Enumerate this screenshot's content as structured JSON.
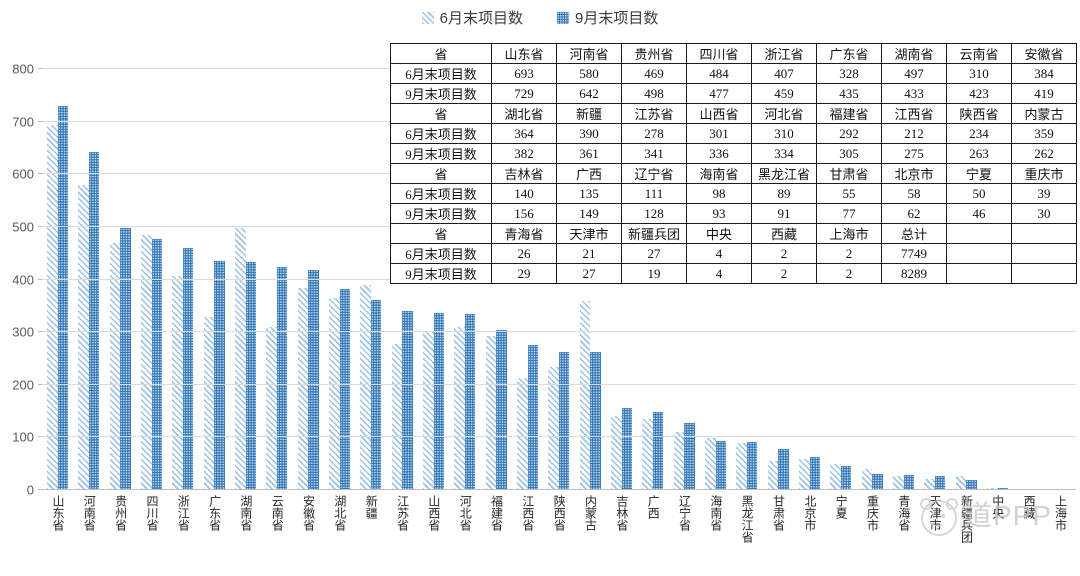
{
  "colors": {
    "june_hatch": "#9DC3E6",
    "sept_fill": "#2E75B6",
    "grid": "#DBDBDB",
    "axis_text": "#595959"
  },
  "chart_data": {
    "type": "bar",
    "title": "",
    "xlabel": "",
    "ylabel": "",
    "ylim": [
      0,
      800
    ],
    "yticks": [
      0,
      100,
      200,
      300,
      400,
      500,
      600,
      700,
      800
    ],
    "grid": true,
    "legend_position": "top",
    "categories": [
      "山东省",
      "河南省",
      "贵州省",
      "四川省",
      "浙江省",
      "广东省",
      "湖南省",
      "云南省",
      "安徽省",
      "湖北省",
      "新疆",
      "江苏省",
      "山西省",
      "河北省",
      "福建省",
      "江西省",
      "陕西省",
      "内蒙古",
      "吉林省",
      "广西",
      "辽宁省",
      "海南省",
      "黑龙江省",
      "甘肃省",
      "北京市",
      "宁夏",
      "重庆市",
      "青海省",
      "天津市",
      "新疆兵团",
      "中央",
      "西藏",
      "上海市"
    ],
    "series": [
      {
        "name": "6月末项目数",
        "values": [
          693,
          580,
          469,
          484,
          407,
          328,
          497,
          310,
          384,
          364,
          390,
          278,
          301,
          310,
          292,
          212,
          234,
          359,
          140,
          135,
          111,
          98,
          89,
          55,
          58,
          50,
          39,
          26,
          21,
          27,
          4,
          2,
          2
        ]
      },
      {
        "name": "9月末项目数",
        "values": [
          729,
          642,
          498,
          477,
          459,
          435,
          433,
          423,
          419,
          382,
          361,
          341,
          336,
          334,
          305,
          275,
          263,
          262,
          156,
          149,
          128,
          93,
          91,
          77,
          62,
          46,
          30,
          29,
          27,
          19,
          4,
          2,
          2
        ]
      }
    ]
  },
  "table": {
    "rows": [
      [
        "省",
        "山东省",
        "河南省",
        "贵州省",
        "四川省",
        "浙江省",
        "广东省",
        "湖南省",
        "云南省",
        "安徽省"
      ],
      [
        "6月末项目数",
        "693",
        "580",
        "469",
        "484",
        "407",
        "328",
        "497",
        "310",
        "384"
      ],
      [
        "9月末项目数",
        "729",
        "642",
        "498",
        "477",
        "459",
        "435",
        "433",
        "423",
        "419"
      ],
      [
        "省",
        "湖北省",
        "新疆",
        "江苏省",
        "山西省",
        "河北省",
        "福建省",
        "江西省",
        "陕西省",
        "内蒙古"
      ],
      [
        "6月末项目数",
        "364",
        "390",
        "278",
        "301",
        "310",
        "292",
        "212",
        "234",
        "359"
      ],
      [
        "9月末项目数",
        "382",
        "361",
        "341",
        "336",
        "334",
        "305",
        "275",
        "263",
        "262"
      ],
      [
        "省",
        "吉林省",
        "广西",
        "辽宁省",
        "海南省",
        "黑龙江省",
        "甘肃省",
        "北京市",
        "宁夏",
        "重庆市"
      ],
      [
        "6月末项目数",
        "140",
        "135",
        "111",
        "98",
        "89",
        "55",
        "58",
        "50",
        "39"
      ],
      [
        "9月末项目数",
        "156",
        "149",
        "128",
        "93",
        "91",
        "77",
        "62",
        "46",
        "30"
      ],
      [
        "省",
        "青海省",
        "天津市",
        "新疆兵团",
        "中央",
        "西藏",
        "上海市",
        "总计",
        "",
        ""
      ],
      [
        "6月末项目数",
        "26",
        "21",
        "27",
        "4",
        "2",
        "2",
        "7749",
        "",
        ""
      ],
      [
        "9月末项目数",
        "29",
        "27",
        "19",
        "4",
        "2",
        "2",
        "8289",
        "",
        ""
      ]
    ]
  },
  "watermark": {
    "text": "道PPP"
  }
}
